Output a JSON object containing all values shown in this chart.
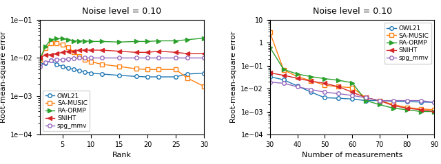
{
  "title": "Noise level = 0.10",
  "left": {
    "xlabel": "Rank",
    "ylabel": "Root-mean-square error",
    "xlim": [
      1,
      30
    ],
    "ylim": [
      0.0001,
      0.1
    ],
    "xticks": [
      5,
      10,
      15,
      20,
      25,
      30
    ],
    "ranks": [
      1,
      2,
      3,
      4,
      5,
      6,
      7,
      8,
      9,
      10,
      12,
      15,
      18,
      20,
      22,
      25,
      27,
      30
    ],
    "OWL21": [
      0.007,
      0.0072,
      0.0085,
      0.0068,
      0.006,
      0.0055,
      0.005,
      0.0047,
      0.0043,
      0.004,
      0.0038,
      0.0035,
      0.0033,
      0.0032,
      0.0032,
      0.0032,
      0.0038,
      0.004
    ],
    "SA_MUSIC": [
      0.009,
      0.018,
      0.024,
      0.024,
      0.022,
      0.019,
      0.014,
      0.011,
      0.009,
      0.008,
      0.0068,
      0.006,
      0.0052,
      0.005,
      0.005,
      0.005,
      0.003,
      0.0018
    ],
    "RA_ORMP": [
      0.009,
      0.02,
      0.03,
      0.032,
      0.032,
      0.03,
      0.028,
      0.028,
      0.028,
      0.027,
      0.027,
      0.026,
      0.027,
      0.027,
      0.028,
      0.028,
      0.03,
      0.033
    ],
    "SNIHT": [
      0.01,
      0.012,
      0.012,
      0.013,
      0.014,
      0.015,
      0.015,
      0.016,
      0.016,
      0.016,
      0.016,
      0.015,
      0.014,
      0.014,
      0.015,
      0.014,
      0.013,
      0.013
    ],
    "spg_mmv": [
      0.006,
      0.0075,
      0.0085,
      0.009,
      0.009,
      0.0095,
      0.0098,
      0.01,
      0.01,
      0.01,
      0.01,
      0.01,
      0.01,
      0.01,
      0.01,
      0.01,
      0.01,
      0.01
    ]
  },
  "right": {
    "xlabel": "Number of measurements",
    "ylabel": "Root-mean-square error",
    "xlim": [
      30,
      90
    ],
    "ylim": [
      0.0001,
      10.0
    ],
    "xticks": [
      30,
      40,
      50,
      60,
      70,
      80,
      90
    ],
    "meas": [
      30,
      35,
      40,
      45,
      50,
      55,
      60,
      65,
      70,
      75,
      80,
      85,
      90
    ],
    "OWL21": [
      0.033,
      0.024,
      0.013,
      0.007,
      0.004,
      0.0038,
      0.0035,
      0.003,
      0.003,
      0.0028,
      0.0027,
      0.0026,
      0.0025
    ],
    "SA_MUSIC": [
      2.8,
      0.065,
      0.033,
      0.022,
      0.014,
      0.012,
      0.011,
      0.004,
      0.003,
      0.002,
      0.0015,
      0.0013,
      0.0012
    ],
    "RA_ORMP": [
      0.62,
      0.068,
      0.043,
      0.033,
      0.027,
      0.023,
      0.018,
      0.003,
      0.002,
      0.0014,
      0.0012,
      0.001,
      0.001
    ],
    "SNIHT": [
      0.048,
      0.038,
      0.028,
      0.021,
      0.017,
      0.012,
      0.007,
      0.004,
      0.003,
      0.0018,
      0.0014,
      0.0012,
      0.001
    ],
    "spg_mmv": [
      0.019,
      0.017,
      0.012,
      0.009,
      0.007,
      0.006,
      0.005,
      0.004,
      0.003,
      0.003,
      0.003,
      0.003,
      0.0025
    ]
  },
  "colors": {
    "OWL21": "#1f77b4",
    "SA_MUSIC": "#ff7f0e",
    "RA_ORMP": "#2ca02c",
    "SNIHT": "#d62728",
    "spg_mmv": "#9467bd"
  },
  "markers": {
    "OWL21": "o",
    "SA_MUSIC": "s",
    "RA_ORMP": ">",
    "SNIHT": "<",
    "spg_mmv": "o"
  },
  "markerfacecolor": {
    "OWL21": "white",
    "SA_MUSIC": "white",
    "RA_ORMP": "#2ca02c",
    "SNIHT": "#d62728",
    "spg_mmv": "white"
  },
  "labels": {
    "OWL21": "OWL21",
    "SA_MUSIC": "SA-MUSIC",
    "RA_ORMP": "RA-ORMP",
    "SNIHT": "SNIHT",
    "spg_mmv": "spg_mmv"
  }
}
